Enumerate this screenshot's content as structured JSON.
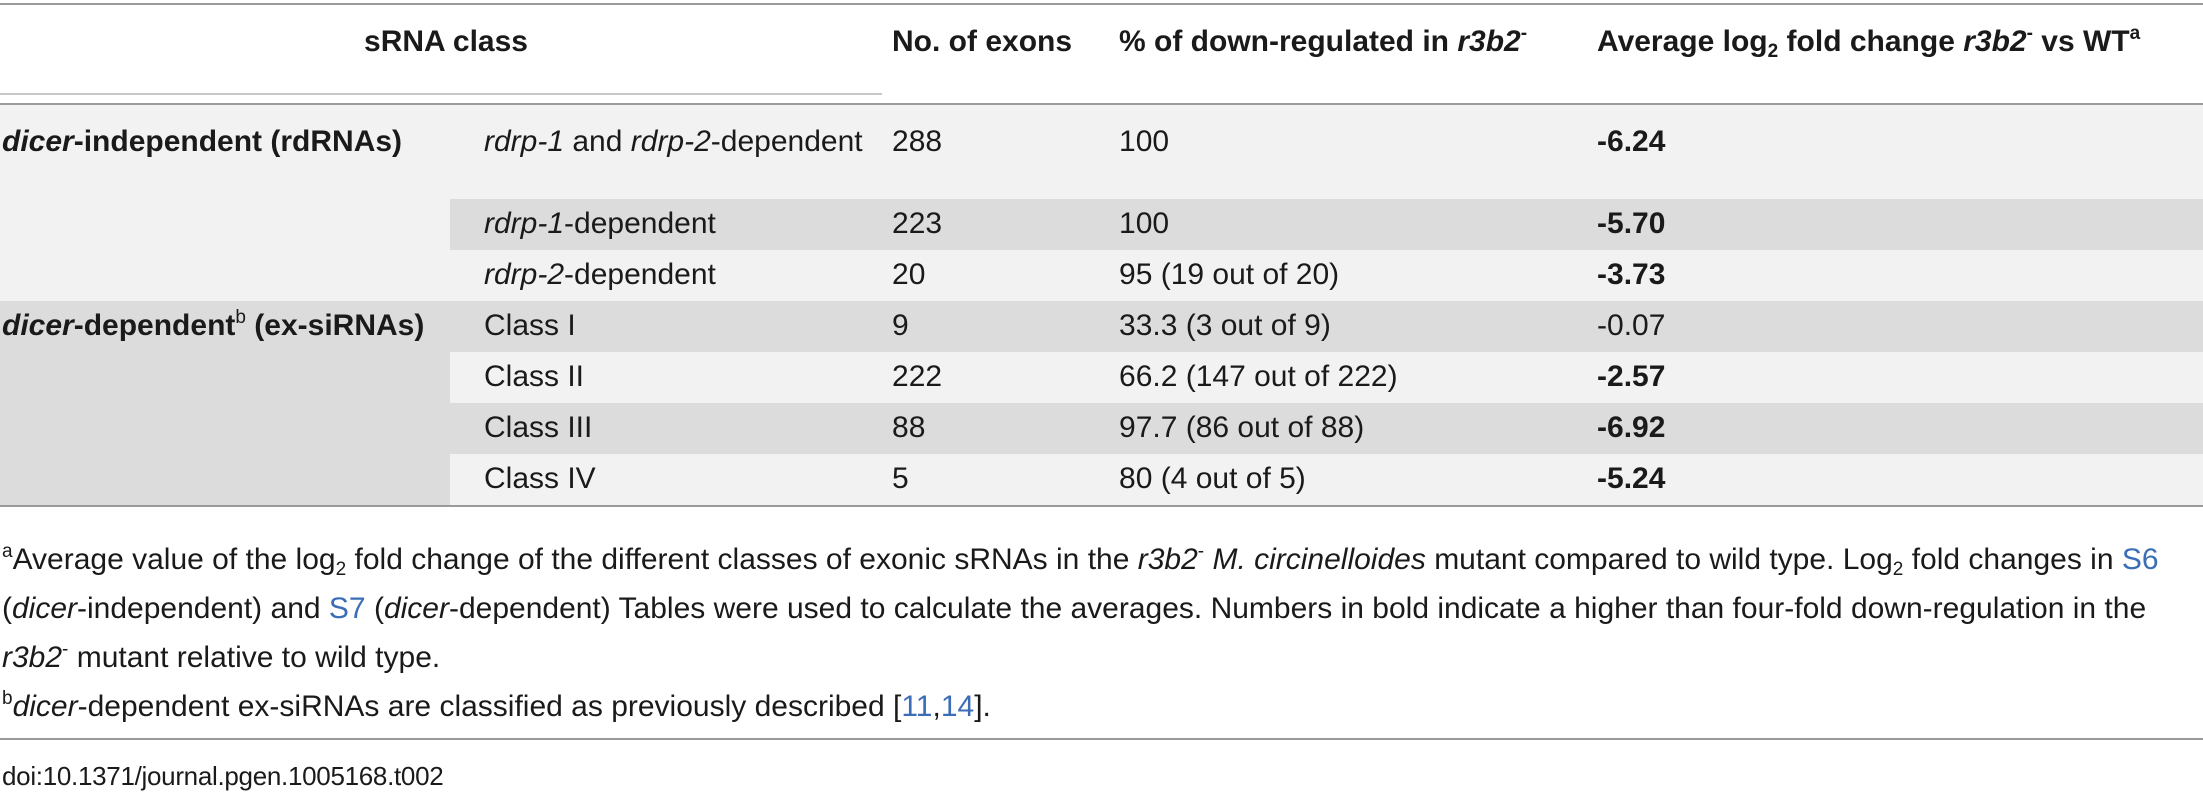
{
  "header": {
    "srna_class": "sRNA class",
    "no_exons": "No. of exons",
    "pct_prefix": "% of down-regulated in ",
    "pct_strain": "r3b2",
    "pct_sup": "-",
    "avg_prefix": "Average log",
    "avg_sub": "2",
    "avg_mid": " fold change ",
    "avg_strain": "r3b2",
    "avg_strain_sup": "-",
    "avg_vs": " vs WT",
    "avg_sup": "a"
  },
  "groups": {
    "dicer_independent": {
      "italic": "dicer",
      "rest": "-independent (rdRNAs)"
    },
    "dicer_dependent": {
      "italic": "dicer",
      "rest": "-dependent",
      "sup": "b",
      "rest2": " (ex-siRNAs)"
    }
  },
  "rows": [
    {
      "sub_a_it": "rdrp-1",
      "sub_b": " and ",
      "sub_c_it": "rdrp-2",
      "sub_d": "-dependent",
      "exons": "288",
      "pct": "100",
      "avg": "-6.24"
    },
    {
      "sub_a_it": "rdrp-1",
      "sub_d": "-dependent",
      "exons": "223",
      "pct": "100",
      "avg": "-5.70"
    },
    {
      "sub_a_it": "rdrp-2",
      "sub_d": "-dependent",
      "exons": "20",
      "pct": "95 (19 out of 20)",
      "avg": "-3.73"
    },
    {
      "sub": "Class I",
      "exons": "9",
      "pct": "33.3 (3 out of 9)",
      "avg": "-0.07"
    },
    {
      "sub": "Class II",
      "exons": "222",
      "pct": "66.2 (147 out of 222)",
      "avg": "-2.57"
    },
    {
      "sub": "Class III",
      "exons": "88",
      "pct": "97.7 (86 out of 88)",
      "avg": "-6.92"
    },
    {
      "sub": "Class IV",
      "exons": "5",
      "pct": "80 (4 out of 5)",
      "avg": "-5.24"
    }
  ],
  "footnotes": {
    "a_mark": "a",
    "a_t1": "Average value of the log",
    "a_sub": "2",
    "a_t2": " fold change of the different classes of exonic sRNAs in the ",
    "a_strain": "r3b2",
    "a_strain_sup": "-",
    "a_sp": " M",
    "a_sp2": ". circinelloides",
    "a_t3": " mutant compared to wild type. Log",
    "a_sub2": "2",
    "a_t4": " fold changes in ",
    "a_link1": "S6",
    "a_t5": " (",
    "a_it1": "dicer",
    "a_t6": "-independent) and ",
    "a_link2": "S7",
    "a_t7": " (",
    "a_it2": "dicer",
    "a_t8": "-dependent) Tables were used to calculate the averages. Numbers in bold indicate a higher than four-fold down-regulation in the ",
    "a_strain2": "r3b2",
    "a_strain2_sup": "-",
    "a_t9": " mutant relative to wild type.",
    "b_mark": "b",
    "b_it": "dicer",
    "b_t1": "-dependent ex-siRNAs are classified as previously described [",
    "b_link1": "11",
    "b_comma": ",",
    "b_link2": "14",
    "b_t2": "]."
  },
  "doi": "doi:10.1371/journal.pgen.1005168.t002"
}
